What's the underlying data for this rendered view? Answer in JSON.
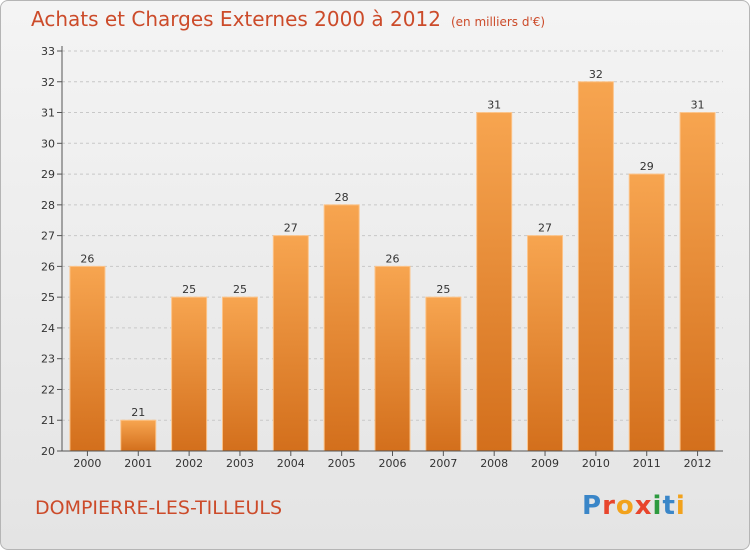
{
  "title": "Achats et Charges Externes 2000 à 2012",
  "subtitle": "(en milliers d'€)",
  "commune": "DOMPIERRE-LES-TILLEULS",
  "logo": {
    "letters": [
      "P",
      "r",
      "o",
      "x",
      "i",
      "t",
      "i"
    ],
    "colors": [
      "#3a86c8",
      "#e8452c",
      "#f2a21c",
      "#e8452c",
      "#2d9a3f",
      "#3a86c8",
      "#f2a21c"
    ]
  },
  "colors": {
    "bar_top": "#f7a550",
    "bar_bottom": "#d36f1c",
    "bar_edge": "#fcc48a",
    "grid": "#c8c8c8",
    "axis": "#555555",
    "text": "#333333",
    "title": "#cc4b2a"
  },
  "chart_data": {
    "type": "bar",
    "title": "Achats et Charges Externes 2000 à 2012",
    "subtitle": "(en milliers d'€)",
    "categories": [
      "2000",
      "2001",
      "2002",
      "2003",
      "2004",
      "2005",
      "2006",
      "2007",
      "2008",
      "2009",
      "2010",
      "2011",
      "2012"
    ],
    "values": [
      26,
      21,
      25,
      25,
      27,
      28,
      26,
      25,
      31,
      27,
      32,
      29,
      31
    ],
    "ylim": [
      20,
      33
    ],
    "yticks": [
      20,
      21,
      22,
      23,
      24,
      25,
      26,
      27,
      28,
      29,
      30,
      31,
      32,
      33
    ],
    "xlabel": "",
    "ylabel": "",
    "grid": true,
    "data_labels": true
  }
}
